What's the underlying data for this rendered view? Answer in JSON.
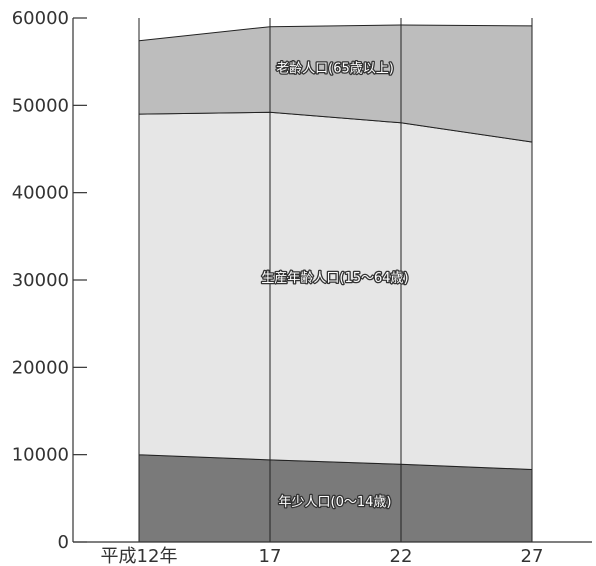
{
  "chart_data": {
    "type": "area",
    "stacked": true,
    "categories": [
      "平成12年",
      "17",
      "22",
      "27"
    ],
    "series": [
      {
        "name": "年少人口(0〜14歳)",
        "values": [
          10000,
          9400,
          8900,
          8300
        ],
        "color": "#7a7a7a"
      },
      {
        "name": "生産年齢人口(15〜64歳)",
        "values": [
          39000,
          39800,
          39100,
          37500
        ],
        "color": "#e6e6e6"
      },
      {
        "name": "老齢人口(65歳以上)",
        "values": [
          8400,
          9800,
          11200,
          13300
        ],
        "color": "#bdbdbd"
      }
    ],
    "ylim": [
      0,
      60000
    ],
    "yticks": [
      "0",
      "10000",
      "20000",
      "30000",
      "40000",
      "50000",
      "60000"
    ],
    "gridlines": "vertical",
    "legend": "inline-labels"
  }
}
